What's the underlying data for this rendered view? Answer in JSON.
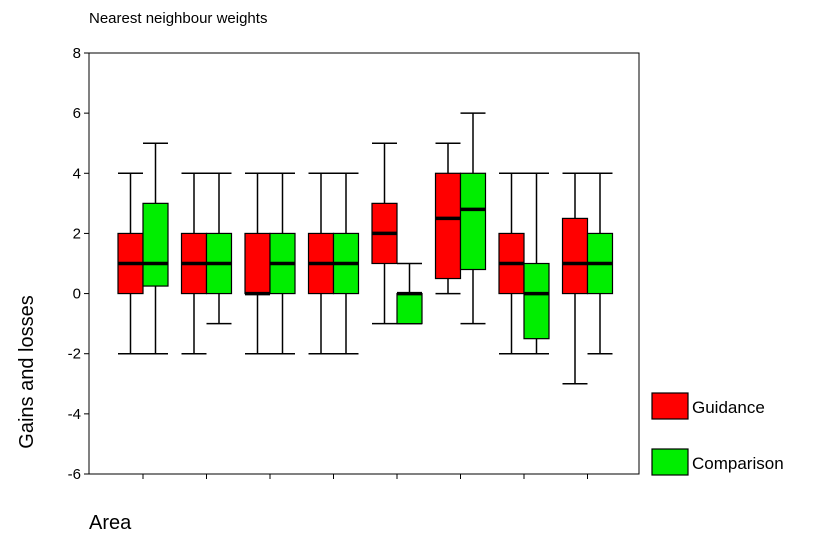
{
  "chart_data": {
    "type": "box",
    "title": "Nearest neighbour weights",
    "xlabel": "Area",
    "ylabel": "Gains and losses",
    "ylim": [
      -6,
      8
    ],
    "yticks": [
      -6,
      -4,
      -2,
      0,
      2,
      4,
      6,
      8
    ],
    "categories": [
      "",
      "",
      "",
      "",
      "",
      "",
      "",
      ""
    ],
    "legend_position": "right",
    "series": [
      {
        "name": "Guidance",
        "color": "#ff0000",
        "boxes": [
          {
            "min": -2,
            "q1": 0,
            "median": 1,
            "q3": 2,
            "max": 4
          },
          {
            "min": -2,
            "q1": 0,
            "median": 1,
            "q3": 2,
            "max": 4
          },
          {
            "min": -2,
            "q1": 0,
            "median": 0,
            "q3": 2,
            "max": 4
          },
          {
            "min": -2,
            "q1": 0,
            "median": 1,
            "q3": 2,
            "max": 4
          },
          {
            "min": -1,
            "q1": 1,
            "median": 2,
            "q3": 3,
            "max": 5
          },
          {
            "min": 0,
            "q1": 0.5,
            "median": 2.5,
            "q3": 4,
            "max": 5
          },
          {
            "min": -2,
            "q1": 0,
            "median": 1,
            "q3": 2,
            "max": 4
          },
          {
            "min": -3,
            "q1": 0,
            "median": 1,
            "q3": 2.5,
            "max": 4
          }
        ]
      },
      {
        "name": "Comparison",
        "color": "#00ee00",
        "boxes": [
          {
            "min": -2,
            "q1": 0.25,
            "median": 1,
            "q3": 3,
            "max": 5
          },
          {
            "min": -1,
            "q1": 0,
            "median": 1,
            "q3": 2,
            "max": 4
          },
          {
            "min": -2,
            "q1": 0,
            "median": 1,
            "q3": 2,
            "max": 4
          },
          {
            "min": -2,
            "q1": 0,
            "median": 1,
            "q3": 2,
            "max": 4
          },
          {
            "min": -1,
            "q1": -1,
            "median": 0,
            "q3": 0,
            "max": 1
          },
          {
            "min": -1,
            "q1": 0.8,
            "median": 2.8,
            "q3": 4,
            "max": 6
          },
          {
            "min": -2,
            "q1": -1.5,
            "median": 0,
            "q3": 1,
            "max": 4
          },
          {
            "min": -2,
            "q1": 0,
            "median": 1,
            "q3": 2,
            "max": 4
          }
        ]
      }
    ]
  }
}
